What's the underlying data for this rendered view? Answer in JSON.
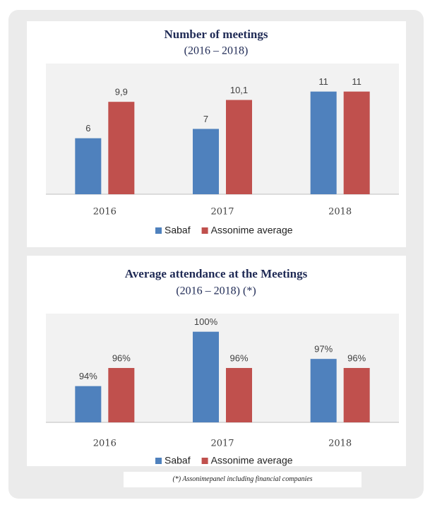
{
  "chart_data": [
    {
      "type": "bar",
      "title": "Number of meetings",
      "subtitle": "(2016 – 2018)",
      "categories": [
        "2016",
        "2017",
        "2018"
      ],
      "series": [
        {
          "name": "Sabaf",
          "color": "#4f81bd",
          "values": [
            6,
            7,
            11
          ],
          "value_labels": [
            "6",
            "7",
            "11"
          ]
        },
        {
          "name": "Assonime average",
          "color": "#c0504d",
          "values": [
            9.9,
            10.1,
            11
          ],
          "value_labels": [
            "9,9",
            "10,1",
            "11"
          ]
        }
      ],
      "ylim": [
        0,
        14
      ]
    },
    {
      "type": "bar",
      "title": "Average attendance at the  Meetings",
      "subtitle": "(2016 – 2018) (*)",
      "categories": [
        "2016",
        "2017",
        "2018"
      ],
      "series": [
        {
          "name": "Sabaf",
          "color": "#4f81bd",
          "values": [
            94,
            100,
            97
          ],
          "value_labels": [
            "94%",
            "100%",
            "97%"
          ]
        },
        {
          "name": "Assonime average",
          "color": "#c0504d",
          "values": [
            96,
            96,
            96
          ],
          "value_labels": [
            "96%",
            "96%",
            "96%"
          ]
        }
      ],
      "ylim": [
        90,
        102
      ]
    }
  ],
  "footnote": "(*) Assonimepanel including financial companies"
}
